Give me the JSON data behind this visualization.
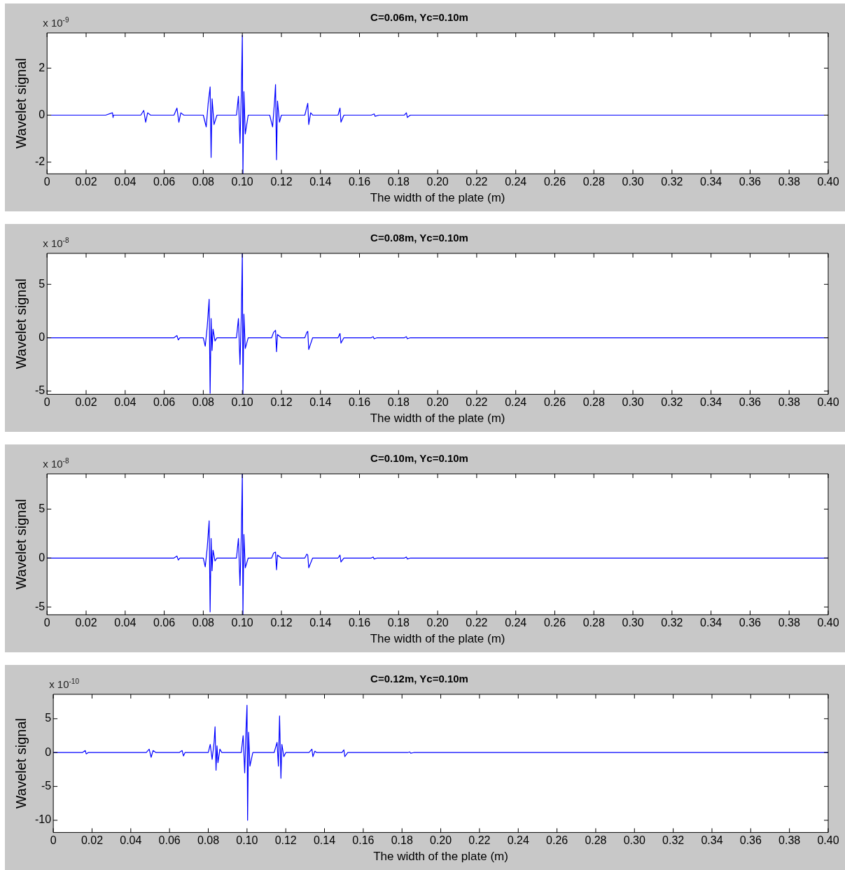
{
  "chart_data": [
    {
      "type": "line",
      "title": "C=0.06m, Yc=0.10m",
      "xlabel": "The width of the plate (m)",
      "ylabel": "Wavelet signal",
      "annotations": [
        "x 10$^{-9}$"
      ],
      "xlim": [
        0,
        0.4
      ],
      "xticks": [
        0,
        0.02,
        0.04,
        0.06,
        0.08,
        {
          "value": 0.1,
          "label": "0.10"
        },
        0.12,
        0.14,
        0.16,
        0.18,
        {
          "value": 0.2,
          "label": "0.20"
        },
        0.22,
        0.24,
        0.26,
        0.28,
        {
          "value": 0.3,
          "label": "0.30"
        },
        0.32,
        0.34,
        0.36,
        0.38,
        {
          "value": 0.4,
          "label": "0.40"
        }
      ],
      "ylim": [
        -2.5,
        3.5
      ],
      "yticks": [
        -2,
        0,
        2
      ],
      "grid": false,
      "series": [
        {
          "color": "#0000ff",
          "x": [
            0,
            0.03,
            0.0335,
            0.0338,
            0.034,
            0.048,
            0.0495,
            0.0505,
            0.0515,
            0.053,
            0.065,
            0.0665,
            0.0675,
            0.0685,
            0.07,
            0.08,
            0.0815,
            0.0825,
            0.0835,
            0.084,
            0.0845,
            0.0855,
            0.087,
            0.097,
            0.098,
            0.0988,
            0.0995,
            0.1,
            0.1003,
            0.1008,
            0.1015,
            0.103,
            0.114,
            0.1155,
            0.1165,
            0.117,
            0.1175,
            0.118,
            0.119,
            0.12,
            0.132,
            0.1335,
            0.134,
            0.135,
            0.136,
            0.149,
            0.15,
            0.1505,
            0.152,
            0.166,
            0.1675,
            0.168,
            0.17,
            0.183,
            0.184,
            0.1845,
            0.186,
            0.4
          ],
          "values": [
            0,
            0,
            0.1,
            -0.1,
            0,
            0,
            0.2,
            -0.3,
            0.1,
            0,
            0,
            0.3,
            -0.3,
            0.1,
            0,
            0,
            -0.5,
            0.5,
            1.2,
            -1.8,
            0.7,
            -0.4,
            0,
            0,
            0.8,
            -1.2,
            1.0,
            3.4,
            -2.5,
            1.0,
            -0.8,
            0,
            0,
            -0.5,
            0.6,
            1.3,
            -1.9,
            0.6,
            -0.3,
            0,
            0,
            0.5,
            -0.4,
            0.1,
            0,
            0,
            0.3,
            -0.3,
            0,
            0,
            0.05,
            -0.05,
            0,
            0,
            0.1,
            -0.1,
            0,
            0
          ]
        }
      ]
    },
    {
      "type": "line",
      "title": "C=0.08m, Yc=0.10m",
      "xlabel": "The width of the plate (m)",
      "ylabel": "Wavelet signal",
      "annotations": [
        "x 10$^{-8}$"
      ],
      "xlim": [
        0,
        0.4
      ],
      "xticks": [
        0,
        0.02,
        0.04,
        0.06,
        0.08,
        {
          "value": 0.1,
          "label": "0.10"
        },
        0.12,
        0.14,
        0.16,
        0.18,
        {
          "value": 0.2,
          "label": "0.20"
        },
        0.22,
        0.24,
        0.26,
        0.28,
        {
          "value": 0.3,
          "label": "0.30"
        },
        0.32,
        0.34,
        0.36,
        0.38,
        {
          "value": 0.4,
          "label": "0.40"
        }
      ],
      "ylim": [
        -5.3,
        7.9
      ],
      "yticks": [
        -5,
        0,
        5
      ],
      "grid": false,
      "series": [
        {
          "color": "#0000ff",
          "x": [
            0,
            0.065,
            0.0665,
            0.0672,
            0.068,
            0.08,
            0.081,
            0.082,
            0.083,
            0.0835,
            0.084,
            0.0845,
            0.085,
            0.086,
            0.087,
            0.097,
            0.098,
            0.0988,
            0.0995,
            0.1,
            0.1003,
            0.1008,
            0.1015,
            0.103,
            0.115,
            0.116,
            0.117,
            0.1175,
            0.118,
            0.12,
            0.132,
            0.133,
            0.1335,
            0.134,
            0.136,
            0.149,
            0.15,
            0.1505,
            0.152,
            0.166,
            0.167,
            0.1675,
            0.169,
            0.183,
            0.184,
            0.1845,
            0.186,
            0.4
          ],
          "values": [
            0,
            0,
            0.2,
            -0.2,
            0,
            0,
            -0.8,
            1.0,
            3.6,
            -5.2,
            1.8,
            -1.2,
            0.8,
            -0.3,
            0,
            0,
            1.8,
            -2.5,
            2.3,
            7.9,
            -5.3,
            2.2,
            -1.0,
            0,
            0,
            0.5,
            0.7,
            -1.3,
            0.3,
            0,
            0,
            0.5,
            0.6,
            -1.1,
            0,
            0,
            0.4,
            -0.5,
            0,
            0,
            0.1,
            -0.1,
            0,
            0,
            0.1,
            -0.1,
            0,
            0
          ]
        }
      ]
    },
    {
      "type": "line",
      "title": "C=0.10m, Yc=0.10m",
      "xlabel": "The width of the plate (m)",
      "ylabel": "Wavelet signal",
      "annotations": [
        "x 10$^{-8}$"
      ],
      "xlim": [
        0,
        0.4
      ],
      "xticks": [
        0,
        0.02,
        0.04,
        0.06,
        0.08,
        {
          "value": 0.1,
          "label": "0.10"
        },
        0.12,
        0.14,
        0.16,
        0.18,
        {
          "value": 0.2,
          "label": "0.20"
        },
        0.22,
        0.24,
        0.26,
        0.28,
        {
          "value": 0.3,
          "label": "0.30"
        },
        0.32,
        0.34,
        0.36,
        0.38,
        {
          "value": 0.4,
          "label": "0.40"
        }
      ],
      "ylim": [
        -5.8,
        8.6
      ],
      "yticks": [
        -5,
        0,
        5
      ],
      "grid": false,
      "series": [
        {
          "color": "#0000ff",
          "x": [
            0,
            0.065,
            0.0665,
            0.0672,
            0.068,
            0.08,
            0.081,
            0.082,
            0.083,
            0.0835,
            0.084,
            0.0845,
            0.085,
            0.086,
            0.087,
            0.097,
            0.098,
            0.0988,
            0.0995,
            0.1,
            0.1003,
            0.1008,
            0.1015,
            0.103,
            0.115,
            0.116,
            0.117,
            0.1175,
            0.118,
            0.12,
            0.132,
            0.133,
            0.1335,
            0.134,
            0.136,
            0.149,
            0.15,
            0.1505,
            0.152,
            0.166,
            0.167,
            0.1675,
            0.169,
            0.183,
            0.184,
            0.1845,
            0.186,
            0.4
          ],
          "values": [
            0,
            0,
            0.2,
            -0.2,
            0,
            0,
            -0.9,
            1.0,
            3.8,
            -5.5,
            2.0,
            -1.3,
            0.8,
            -0.3,
            0,
            0,
            2.0,
            -2.8,
            2.6,
            8.6,
            -5.8,
            2.4,
            -1.0,
            0,
            0,
            0.5,
            0.6,
            -1.2,
            0.3,
            0,
            0,
            0.4,
            0.3,
            -1.0,
            0,
            0,
            0.3,
            -0.4,
            0,
            0,
            0.1,
            -0.1,
            0,
            0,
            0.1,
            -0.1,
            0,
            0
          ]
        }
      ]
    },
    {
      "type": "line",
      "title": "C=0.12m, Yc=0.10m",
      "xlabel": "The width of the plate (m)",
      "ylabel": "Wavelet signal",
      "annotations": [
        "x 10$^{-10}$"
      ],
      "xlim": [
        0,
        0.4
      ],
      "xticks": [
        0,
        0.02,
        0.04,
        0.06,
        0.08,
        {
          "value": 0.1,
          "label": "0.10"
        },
        0.12,
        0.14,
        0.16,
        0.18,
        {
          "value": 0.2,
          "label": "0.20"
        },
        0.22,
        0.24,
        0.26,
        0.28,
        {
          "value": 0.3,
          "label": "0.30"
        },
        0.32,
        0.34,
        0.36,
        0.38,
        {
          "value": 0.4,
          "label": "0.40"
        }
      ],
      "ylim": [
        -11.8,
        8.6
      ],
      "yticks": [
        -10,
        -5,
        0,
        5
      ],
      "grid": false,
      "series": [
        {
          "color": "#0000ff",
          "x": [
            0,
            0.015,
            0.0165,
            0.017,
            0.018,
            0.048,
            0.0495,
            0.0505,
            0.0515,
            0.053,
            0.065,
            0.0665,
            0.0672,
            0.068,
            0.08,
            0.081,
            0.082,
            0.083,
            0.0835,
            0.084,
            0.0845,
            0.085,
            0.086,
            0.087,
            0.097,
            0.098,
            0.0988,
            0.0995,
            0.1,
            0.1003,
            0.1008,
            0.1015,
            0.103,
            0.114,
            0.1155,
            0.1162,
            0.1168,
            0.1175,
            0.118,
            0.119,
            0.12,
            0.132,
            0.1335,
            0.134,
            0.135,
            0.136,
            0.149,
            0.15,
            0.1505,
            0.152,
            0.183,
            0.184,
            0.1845,
            0.186,
            0.4
          ],
          "values": [
            0,
            0,
            0.3,
            -0.2,
            0,
            0,
            0.5,
            -0.7,
            0.3,
            0,
            0,
            0.3,
            -0.5,
            0,
            0,
            1.2,
            -1.0,
            1.5,
            3.8,
            -2.6,
            1.0,
            -1.5,
            0.5,
            0,
            0,
            2.5,
            -3.0,
            3.5,
            7.0,
            -10.0,
            3.0,
            -2.0,
            0,
            0,
            1.5,
            -2.0,
            5.4,
            -3.8,
            1.2,
            -0.6,
            0,
            0,
            0.5,
            -0.6,
            0.2,
            0,
            0,
            0.4,
            -0.6,
            0,
            0,
            0.1,
            -0.1,
            0,
            0
          ]
        }
      ]
    }
  ]
}
